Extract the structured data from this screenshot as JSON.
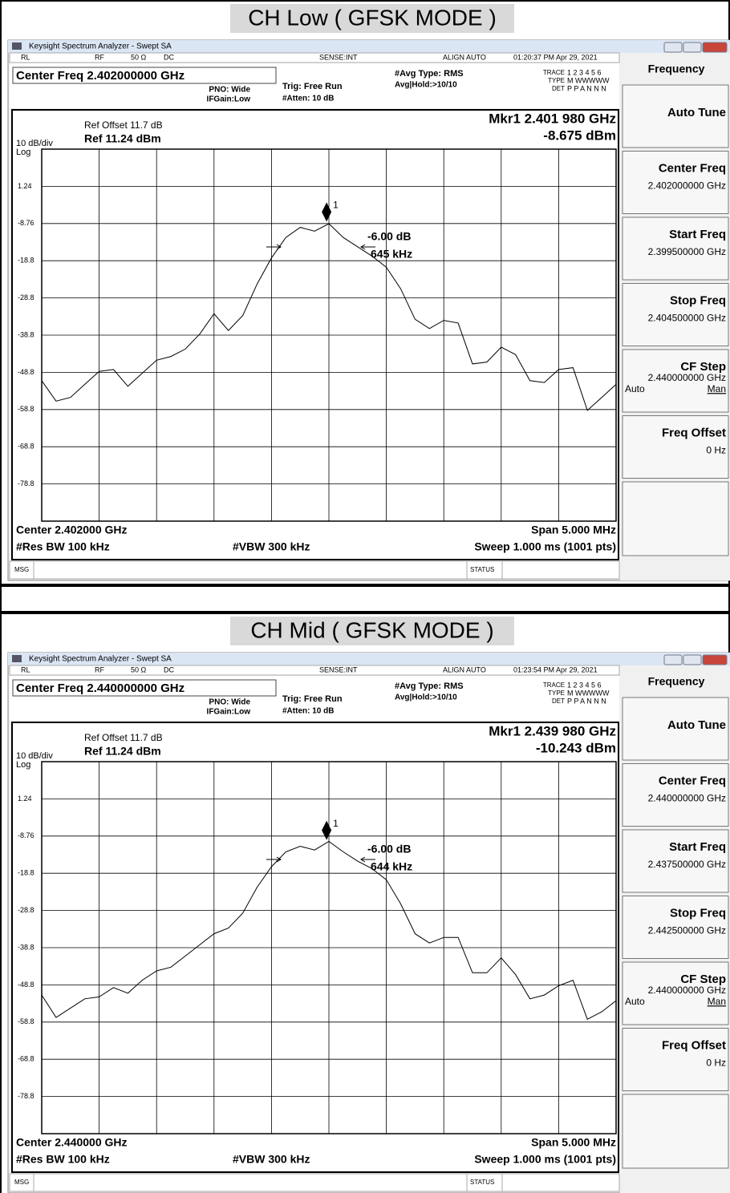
{
  "panels": [
    {
      "title": "CH Low ( GFSK MODE )",
      "window_title": "Keysight Spectrum Analyzer - Swept SA",
      "status": [
        "RL",
        "RF",
        "50 Ω",
        "DC",
        "SENSE:INT",
        "ALIGN AUTO",
        "01:20:37 PM Apr 29, 2021"
      ],
      "center_freq": "Center Freq 2.402000000 GHz",
      "pno": "PNO: Wide",
      "ifgain": "IFGain:Low",
      "trig": "Trig: Free Run",
      "atten": "#Atten: 10 dB",
      "avg_type": "#Avg Type: RMS",
      "avg_hold": "Avg|Hold:>10/10",
      "trace_block": [
        [
          "TRACE",
          "1 2 3 4 5 6"
        ],
        [
          "TYPE",
          "M WWWWW"
        ],
        [
          "DET",
          "P P A N N N"
        ]
      ],
      "ref_offset": "Ref Offset 11.7 dB",
      "scale": "10 dB/div",
      "log": "Log",
      "ref": "Ref 11.24 dBm",
      "marker_freq": "Mkr1 2.401 980 GHz",
      "marker_level": "-8.675 dBm",
      "annotations": [
        "-6.00 dB",
        "645 kHz"
      ],
      "footer": [
        "Center 2.402000 GHz",
        "Span 5.000 MHz",
        "#Res BW 100 kHz",
        "#VBW 300 kHz",
        "Sweep  1.000 ms (1001 pts)"
      ],
      "msg": "MSG",
      "status_label": "STATUS",
      "menu": "Frequency",
      "softkeys": [
        {
          "label": "Auto Tune"
        },
        {
          "label": "Center Freq",
          "value": "2.402000000 GHz"
        },
        {
          "label": "Start Freq",
          "value": "2.399500000 GHz"
        },
        {
          "label": "Stop Freq",
          "value": "2.404500000 GHz"
        },
        {
          "label": "CF Step",
          "value": "2.440000000 GHz",
          "auto": "Auto",
          "man": "Man"
        },
        {
          "label": "Freq Offset",
          "value": "0 Hz"
        }
      ]
    },
    {
      "title": "CH Mid ( GFSK MODE )",
      "window_title": "Keysight Spectrum Analyzer - Swept SA",
      "status": [
        "RL",
        "RF",
        "50 Ω",
        "DC",
        "SENSE:INT",
        "ALIGN AUTO",
        "01:23:54 PM Apr 29, 2021"
      ],
      "center_freq": "Center Freq 2.440000000 GHz",
      "pno": "PNO: Wide",
      "ifgain": "IFGain:Low",
      "trig": "Trig: Free Run",
      "atten": "#Atten: 10 dB",
      "avg_type": "#Avg Type: RMS",
      "avg_hold": "Avg|Hold:>10/10",
      "trace_block": [
        [
          "TRACE",
          "1 2 3 4 5 6"
        ],
        [
          "TYPE",
          "M WWWWW"
        ],
        [
          "DET",
          "P P A N N N"
        ]
      ],
      "ref_offset": "Ref Offset 11.7 dB",
      "scale": "10 dB/div",
      "log": "Log",
      "ref": "Ref 11.24 dBm",
      "marker_freq": "Mkr1 2.439 980 GHz",
      "marker_level": "-10.243 dBm",
      "annotations": [
        "-6.00 dB",
        "644 kHz"
      ],
      "footer": [
        "Center 2.440000 GHz",
        "Span 5.000 MHz",
        "#Res BW 100 kHz",
        "#VBW 300 kHz",
        "Sweep  1.000 ms (1001 pts)"
      ],
      "msg": "MSG",
      "status_label": "STATUS",
      "menu": "Frequency",
      "softkeys": [
        {
          "label": "Auto Tune"
        },
        {
          "label": "Center Freq",
          "value": "2.440000000 GHz"
        },
        {
          "label": "Start Freq",
          "value": "2.437500000 GHz"
        },
        {
          "label": "Stop Freq",
          "value": "2.442500000 GHz"
        },
        {
          "label": "CF Step",
          "value": "2.440000000 GHz",
          "auto": "Auto",
          "man": "Man"
        },
        {
          "label": "Freq Offset",
          "value": "0 Hz"
        }
      ]
    }
  ],
  "chart_data": [
    {
      "type": "line",
      "color": "#000000",
      "grid": true,
      "xlim": [
        2.3995,
        2.4045
      ],
      "ylim": [
        -88.76,
        11.24
      ],
      "yticks": [
        {
          "value": 1.24,
          "label": "1.24"
        },
        {
          "value": -8.76,
          "label": "-8.76"
        },
        {
          "value": -18.76,
          "label": "-18.8"
        },
        {
          "value": -28.76,
          "label": "-28.8"
        },
        {
          "value": -38.76,
          "label": "-38.8"
        },
        {
          "value": -48.76,
          "label": "-48.8"
        },
        {
          "value": -58.76,
          "label": "-58.8"
        },
        {
          "value": -68.76,
          "label": "-68.8"
        },
        {
          "value": -78.76,
          "label": "-78.8"
        }
      ],
      "x": [
        2.3995,
        2.399625,
        2.39975,
        2.399875,
        2.4,
        2.400125,
        2.40025,
        2.400375,
        2.4005,
        2.400625,
        2.40075,
        2.400875,
        2.401,
        2.401125,
        2.40125,
        2.401375,
        2.4015,
        2.401625,
        2.40175,
        2.401875,
        2.402,
        2.402125,
        2.40225,
        2.402375,
        2.4025,
        2.402625,
        2.40275,
        2.402875,
        2.403,
        2.403125,
        2.40325,
        2.403375,
        2.4035,
        2.403625,
        2.40375,
        2.403875,
        2.404,
        2.404125,
        2.40425,
        2.404375,
        2.4045
      ],
      "values": [
        -51.0,
        -56.5,
        -55.5,
        -52.0,
        -48.5,
        -48.0,
        -52.5,
        -49.0,
        -45.5,
        -44.5,
        -42.5,
        -38.5,
        -33.0,
        -37.5,
        -33.5,
        -25.0,
        -18.0,
        -12.5,
        -9.8,
        -10.8,
        -8.8,
        -12.5,
        -15.0,
        -17.5,
        -20.5,
        -26.3,
        -34.5,
        -37.0,
        -34.8,
        -35.5,
        -46.5,
        -46.0,
        -42.0,
        -44.0,
        -51.0,
        -51.5,
        -48.0,
        -47.5,
        -59.0,
        -55.5,
        -52.0
      ],
      "marker": {
        "label": "1",
        "x": 2.40198,
        "value": -8.675
      }
    },
    {
      "type": "line",
      "color": "#000000",
      "grid": true,
      "xlim": [
        2.4375,
        2.4425
      ],
      "ylim": [
        -88.76,
        11.24
      ],
      "yticks": [
        {
          "value": 1.24,
          "label": "1.24"
        },
        {
          "value": -8.76,
          "label": "-8.76"
        },
        {
          "value": -18.76,
          "label": "-18.8"
        },
        {
          "value": -28.76,
          "label": "-28.8"
        },
        {
          "value": -38.76,
          "label": "-38.8"
        },
        {
          "value": -48.76,
          "label": "-48.8"
        },
        {
          "value": -58.76,
          "label": "-58.8"
        },
        {
          "value": -68.76,
          "label": "-68.8"
        },
        {
          "value": -78.76,
          "label": "-78.8"
        }
      ],
      "x": [
        2.4375,
        2.437625,
        2.43775,
        2.437875,
        2.438,
        2.438125,
        2.43825,
        2.438375,
        2.4385,
        2.438625,
        2.43875,
        2.438875,
        2.439,
        2.439125,
        2.43925,
        2.439375,
        2.4395,
        2.439625,
        2.43975,
        2.439875,
        2.44,
        2.440125,
        2.44025,
        2.440375,
        2.4405,
        2.440625,
        2.44075,
        2.440875,
        2.441,
        2.441125,
        2.44125,
        2.441375,
        2.4415,
        2.441625,
        2.44175,
        2.441875,
        2.442,
        2.442125,
        2.44225,
        2.442375,
        2.4425
      ],
      "values": [
        -51.5,
        -57.5,
        -55.0,
        -52.5,
        -52.0,
        -49.5,
        -51.0,
        -47.5,
        -45.0,
        -44.0,
        -41.0,
        -38.0,
        -35.0,
        -33.5,
        -29.5,
        -22.5,
        -17.0,
        -13.0,
        -11.5,
        -12.5,
        -10.2,
        -13.0,
        -15.5,
        -17.5,
        -20.5,
        -27.0,
        -35.0,
        -37.5,
        -36.0,
        -36.0,
        -45.5,
        -45.5,
        -41.5,
        -46.0,
        -52.5,
        -51.5,
        -49.0,
        -47.5,
        -58.0,
        -56.0,
        -53.0
      ],
      "marker": {
        "label": "1",
        "x": 2.43998,
        "value": -10.243
      }
    }
  ]
}
